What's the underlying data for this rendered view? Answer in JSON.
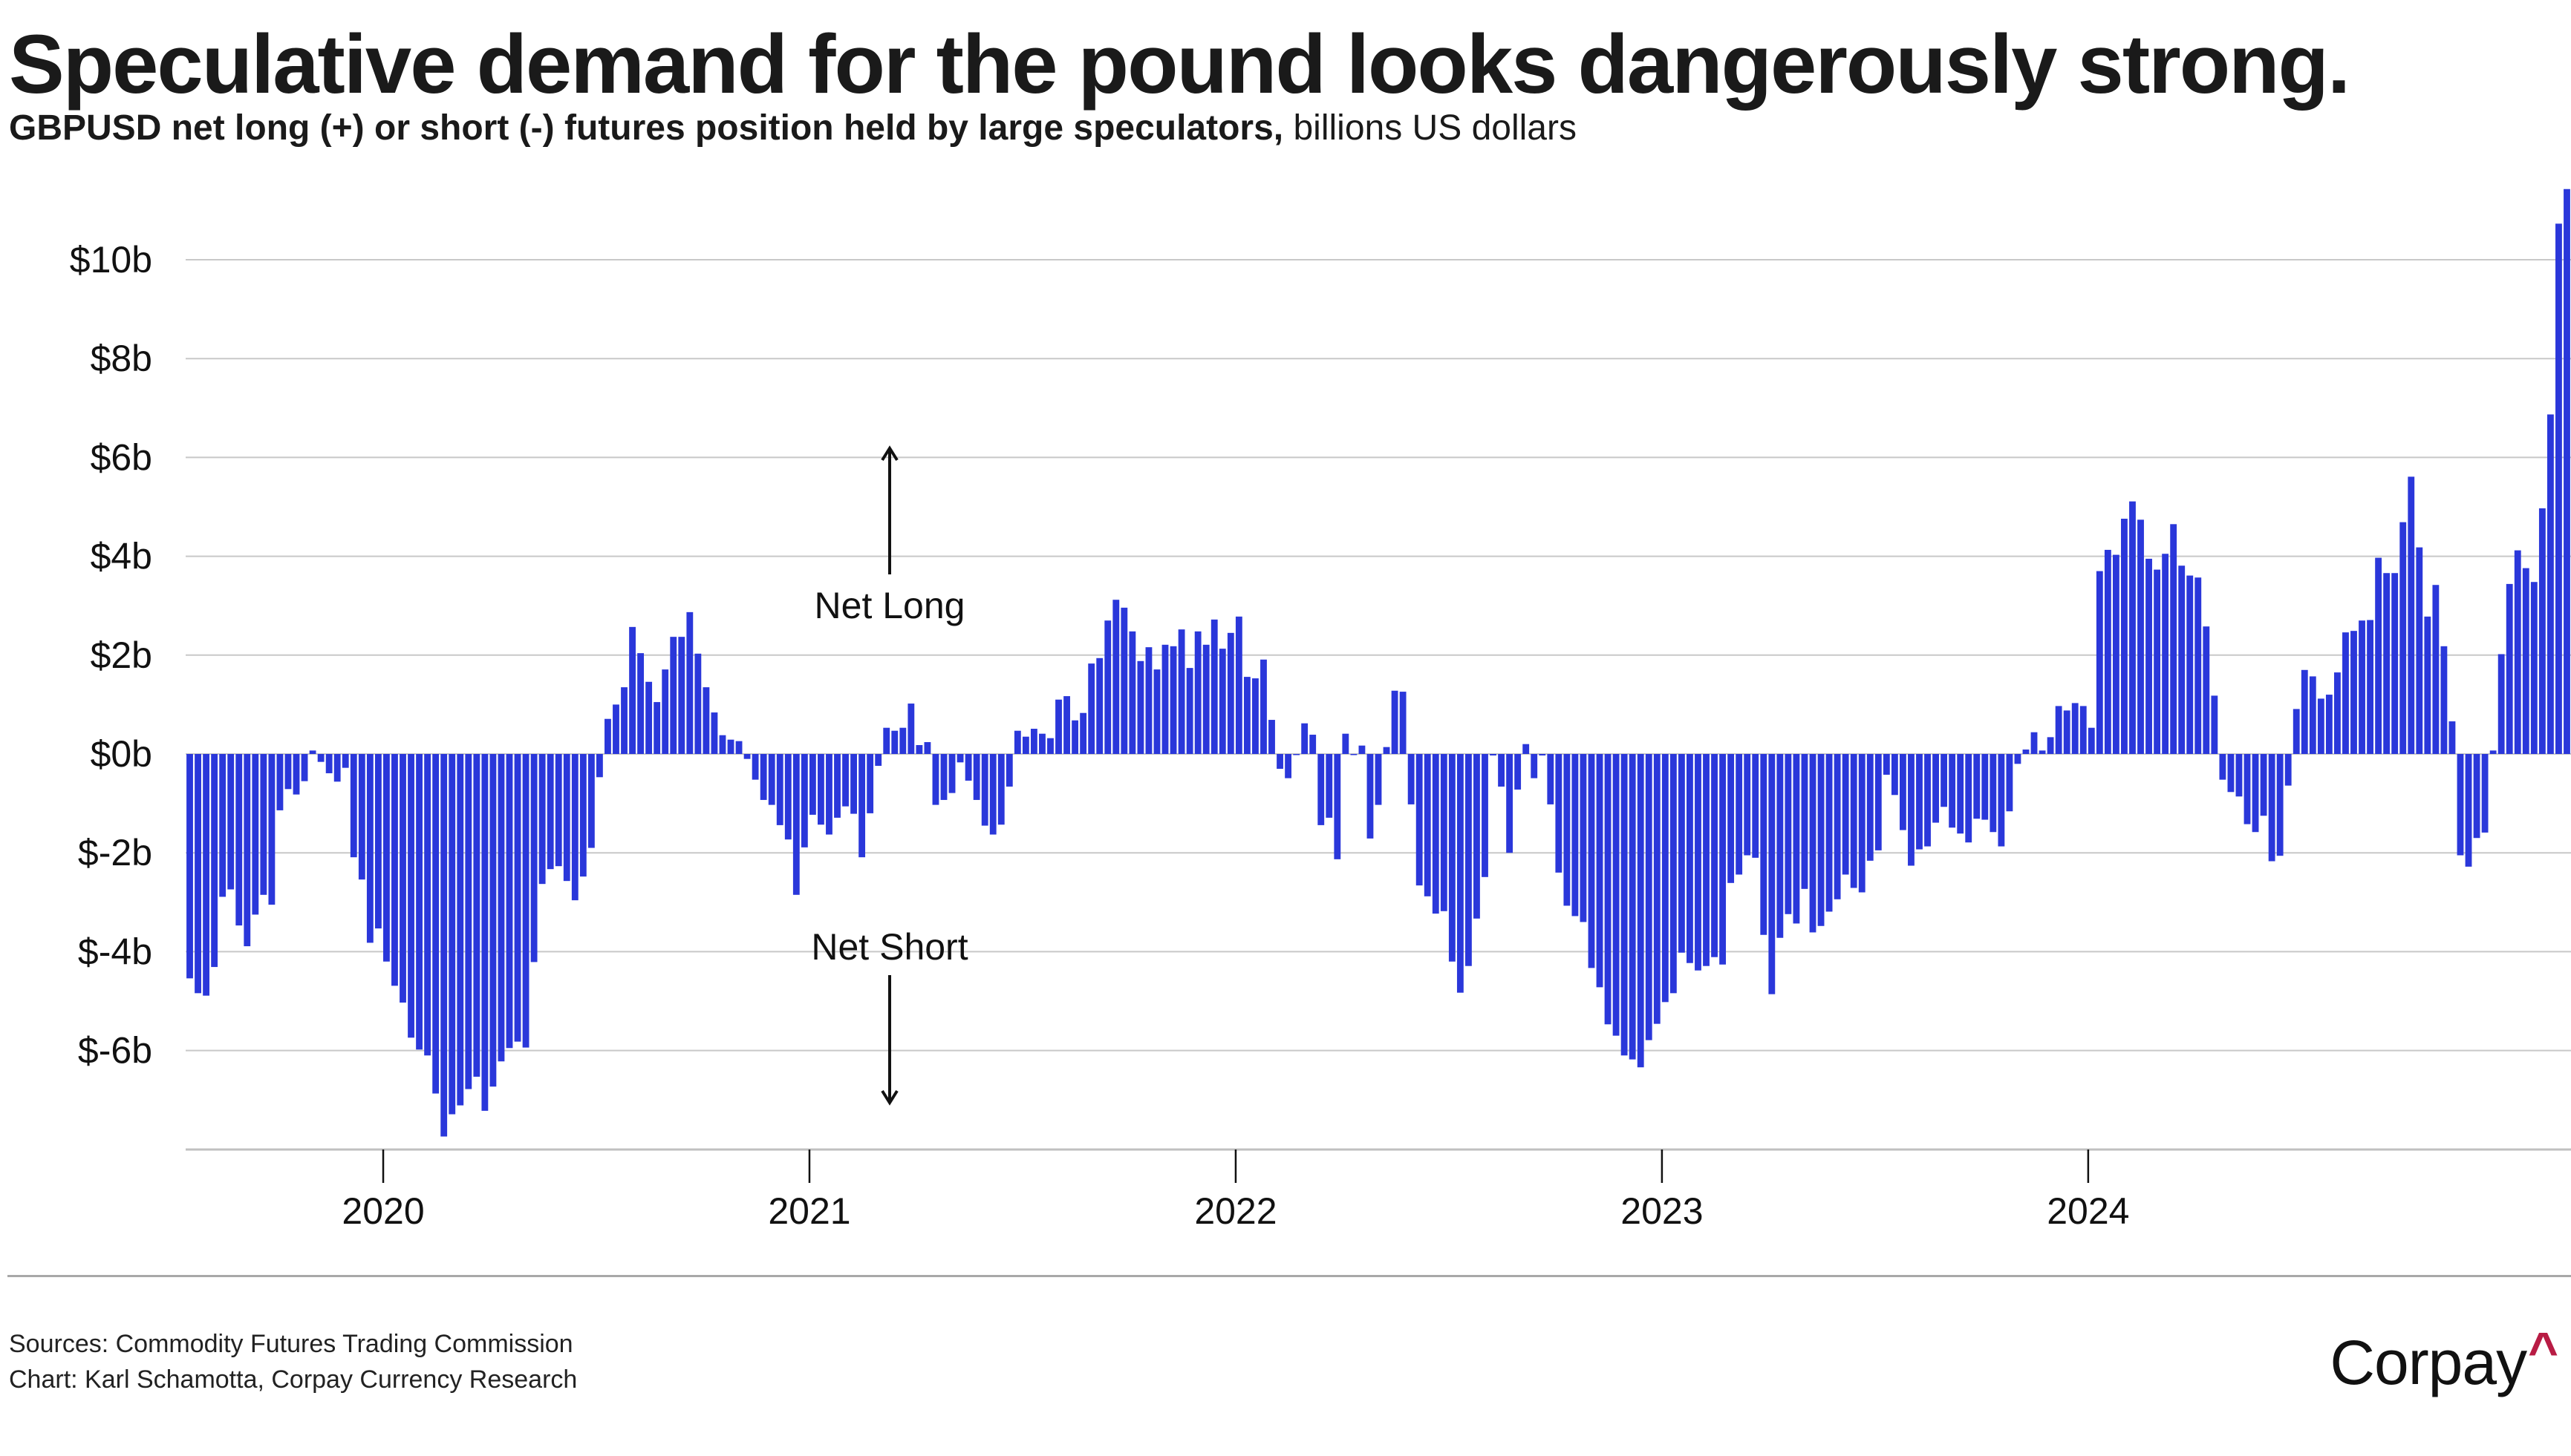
{
  "header": {
    "title": "Speculative demand for the pound looks dangerously strong.",
    "subtitle_bold": "GBPUSD net long (+) or short (-) futures position held by large speculators,",
    "subtitle_light": " billions US dollars"
  },
  "footer": {
    "sources": "Sources: Commodity Futures Trading Commission",
    "credit": "Chart: Karl Schamotta, Corpay Currency Research",
    "logo_text": "Corpay",
    "logo_mark": "^"
  },
  "colors": {
    "bar": "#2A37DA",
    "grid": "#c8c8c8",
    "logo_accent": "#b81c44"
  },
  "chart_data": {
    "type": "bar",
    "title": "Speculative demand for the pound looks dangerously strong.",
    "subtitle": "GBPUSD net long (+) or short (-) futures position held by large speculators, billions US dollars",
    "xlabel": "",
    "ylabel": "billions US dollars",
    "frequency": "weekly",
    "ylim": [
      -8,
      11.5
    ],
    "yticks": [
      -6,
      -4,
      -2,
      0,
      2,
      4,
      6,
      8,
      10
    ],
    "ytick_labels": [
      "$-6b",
      "$-4b",
      "$-2b",
      "$0b",
      "$2b",
      "$4b",
      "$6b",
      "$8b",
      "$10b"
    ],
    "xtick_labels": [
      "2020",
      "2021",
      "2022",
      "2023",
      "2024"
    ],
    "xtick_bar_index": [
      23.6,
      75.6,
      127.6,
      179.6,
      231.6
    ],
    "grid": true,
    "annotations": [
      {
        "text": "Net Long",
        "direction": "up",
        "value": 3.0
      },
      {
        "text": "Net Short",
        "direction": "down",
        "value": -4.0
      }
    ],
    "values": [
      -4.54,
      -4.84,
      -4.89,
      -4.31,
      -2.89,
      -2.74,
      -3.47,
      -3.89,
      -3.25,
      -2.85,
      -3.05,
      -1.14,
      -0.71,
      -0.82,
      -0.55,
      0.07,
      -0.16,
      -0.39,
      -0.56,
      -0.28,
      -2.09,
      -2.54,
      -3.82,
      -3.53,
      -4.2,
      -4.69,
      -5.03,
      -5.74,
      -5.98,
      -6.1,
      -6.87,
      -7.74,
      -7.29,
      -7.11,
      -6.78,
      -6.53,
      -7.22,
      -6.73,
      -6.22,
      -5.95,
      -5.82,
      -5.94,
      -4.21,
      -2.63,
      -2.33,
      -2.27,
      -2.57,
      -2.96,
      -2.48,
      -1.9,
      -0.47,
      0.71,
      1.0,
      1.35,
      2.57,
      2.04,
      1.46,
      1.05,
      1.71,
      2.37,
      2.37,
      2.87,
      2.03,
      1.35,
      0.84,
      0.38,
      0.29,
      0.26,
      -0.1,
      -0.52,
      -0.93,
      -1.03,
      -1.44,
      -1.73,
      -2.85,
      -1.89,
      -1.23,
      -1.43,
      -1.63,
      -1.29,
      -1.06,
      -1.21,
      -2.09,
      -1.2,
      -0.24,
      0.53,
      0.47,
      0.53,
      1.02,
      0.18,
      0.24,
      -1.03,
      -0.93,
      -0.79,
      -0.17,
      -0.54,
      -0.93,
      -1.45,
      -1.63,
      -1.43,
      -0.66,
      0.47,
      0.35,
      0.51,
      0.41,
      0.32,
      1.1,
      1.17,
      0.68,
      0.83,
      1.83,
      1.94,
      2.7,
      3.12,
      2.96,
      2.48,
      1.88,
      2.16,
      1.71,
      2.21,
      2.18,
      2.52,
      1.74,
      2.48,
      2.21,
      2.72,
      2.13,
      2.45,
      2.78,
      1.56,
      1.53,
      1.91,
      0.69,
      -0.3,
      -0.49,
      -0.01,
      0.62,
      0.39,
      -1.44,
      -1.29,
      -2.13,
      0.41,
      -0.01,
      0.17,
      -1.71,
      -1.03,
      0.14,
      1.28,
      1.26,
      -1.02,
      -2.66,
      -2.88,
      -3.23,
      -3.18,
      -4.2,
      -4.83,
      -4.29,
      -3.33,
      -2.49,
      -0.03,
      -0.66,
      -2.0,
      -0.72,
      0.2,
      -0.49,
      -0.03,
      -1.02,
      -2.4,
      -3.07,
      -3.28,
      -3.4,
      -4.33,
      -4.72,
      -5.47,
      -5.7,
      -6.1,
      -6.18,
      -6.34,
      -5.79,
      -5.46,
      -5.02,
      -4.84,
      -4.02,
      -4.23,
      -4.38,
      -4.29,
      -4.11,
      -4.26,
      -2.61,
      -2.44,
      -2.05,
      -2.1,
      -3.66,
      -4.86,
      -3.72,
      -3.24,
      -3.43,
      -2.73,
      -3.61,
      -3.48,
      -3.19,
      -2.94,
      -2.44,
      -2.71,
      -2.8,
      -2.16,
      -1.95,
      -0.42,
      -0.83,
      -1.54,
      -2.26,
      -1.93,
      -1.87,
      -1.39,
      -1.07,
      -1.49,
      -1.61,
      -1.79,
      -1.31,
      -1.33,
      -1.58,
      -1.87,
      -1.16,
      -0.2,
      0.09,
      0.44,
      0.07,
      0.34,
      0.97,
      0.88,
      1.03,
      0.97,
      0.53,
      3.7,
      4.13,
      4.03,
      4.76,
      5.11,
      4.74,
      3.95,
      3.73,
      4.05,
      4.65,
      3.81,
      3.61,
      3.57,
      2.58,
      1.18,
      -0.52,
      -0.77,
      -0.86,
      -1.42,
      -1.58,
      -1.25,
      -2.17,
      -2.06,
      -0.64,
      0.91,
      1.7,
      1.57,
      1.12,
      1.2,
      1.65,
      2.46,
      2.49,
      2.7,
      2.71,
      3.97,
      3.66,
      3.66,
      4.69,
      5.61,
      4.18,
      2.78,
      3.42,
      2.18,
      0.66,
      -2.05,
      -2.28,
      -1.7,
      -1.59,
      0.07,
      2.02,
      3.44,
      4.12,
      3.76,
      3.48,
      4.97,
      6.87,
      10.73,
      11.43
    ]
  }
}
